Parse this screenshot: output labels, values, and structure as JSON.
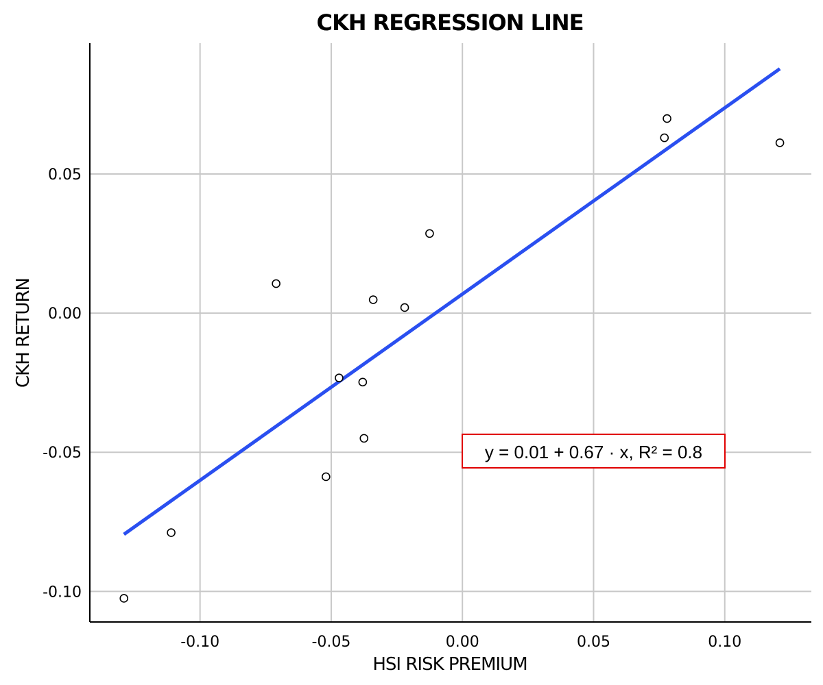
{
  "chart_data": {
    "type": "scatter",
    "title": "CKH REGRESSION LINE",
    "xlabel": "HSI RISK PREMIUM",
    "ylabel": "CKH RETURN",
    "xlim": [
      -0.142,
      0.133
    ],
    "ylim": [
      -0.111,
      0.097
    ],
    "x_ticks": [
      -0.1,
      -0.05,
      0.0,
      0.05,
      0.1
    ],
    "x_tick_labels": [
      "-0.10",
      "-0.05",
      "0.00",
      "0.05",
      "0.10"
    ],
    "y_ticks": [
      -0.1,
      -0.05,
      0.0,
      0.05
    ],
    "y_tick_labels": [
      "-0.10",
      "-0.05",
      "0.00",
      "0.05"
    ],
    "grid": true,
    "points": {
      "x": [
        -0.129,
        -0.111,
        -0.071,
        -0.052,
        -0.047,
        -0.038,
        -0.0375,
        -0.034,
        -0.022,
        -0.0125,
        0.077,
        0.078,
        0.121
      ],
      "y": [
        -0.1025,
        -0.0789,
        0.0106,
        -0.0588,
        -0.0233,
        -0.0248,
        -0.045,
        0.0048,
        0.002,
        0.0286,
        0.063,
        0.0699,
        0.0612
      ]
    },
    "regression_line": {
      "x": [
        -0.129,
        0.121
      ],
      "y": [
        -0.0795,
        0.0878
      ],
      "color": "#2a4ff0"
    },
    "annotation": {
      "text": "y = 0.01 + 0.67 · x,  R² = 0.8",
      "border_color": "#e00000"
    }
  }
}
